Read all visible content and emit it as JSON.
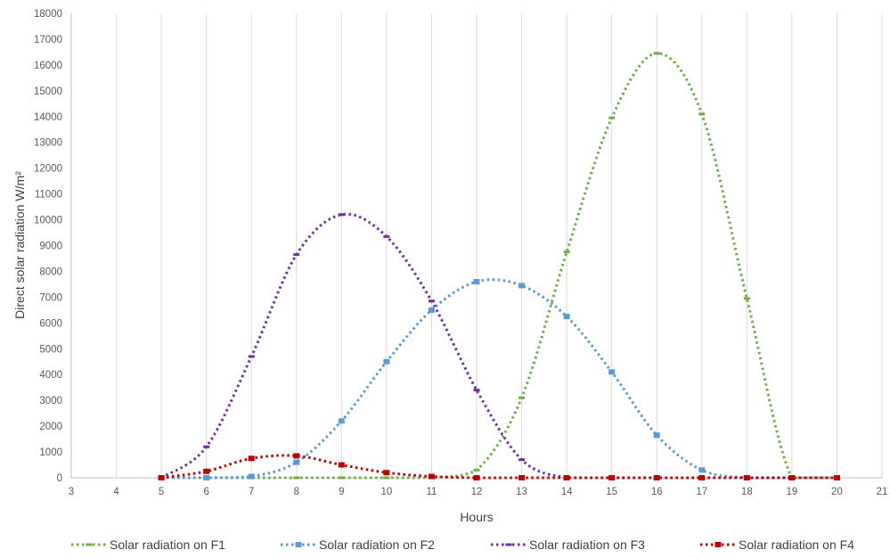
{
  "chart_data": {
    "type": "line",
    "title": "",
    "xlabel": "Hours",
    "ylabel": "Direct solar radiation W/m²",
    "xlim": [
      3,
      21
    ],
    "ylim": [
      0,
      18000
    ],
    "x_ticks": [
      "3",
      "4",
      "5",
      "6",
      "7",
      "8",
      "9",
      "10",
      "11",
      "12",
      "13",
      "14",
      "15",
      "16",
      "17",
      "18",
      "19",
      "20",
      "21"
    ],
    "y_ticks": [
      "0",
      "1000",
      "2000",
      "3000",
      "4000",
      "5000",
      "6000",
      "7000",
      "8000",
      "9000",
      "10000",
      "11000",
      "12000",
      "13000",
      "14000",
      "15000",
      "16000",
      "17000",
      "18000"
    ],
    "grid": "vertical",
    "legend_position": "bottom",
    "x": [
      5,
      6,
      7,
      8,
      9,
      10,
      11,
      12,
      13,
      14,
      15,
      16,
      17,
      18,
      19,
      20
    ],
    "series": [
      {
        "name": "Solar radiation on F1",
        "color": "#70AD47",
        "marker": "dash",
        "values": [
          0,
          0,
          0,
          0,
          0,
          0,
          0,
          300,
          3100,
          8750,
          13950,
          16450,
          14100,
          6950,
          0,
          0
        ]
      },
      {
        "name": "Solar radiation on F2",
        "color": "#5B9BD5",
        "marker": "square",
        "values": [
          0,
          0,
          50,
          600,
          2200,
          4500,
          6500,
          7600,
          7450,
          6250,
          4100,
          1650,
          300,
          0,
          0,
          0
        ]
      },
      {
        "name": "Solar radiation on F3",
        "color": "#7030A0",
        "marker": "dash",
        "values": [
          0,
          1200,
          4700,
          8650,
          10200,
          9350,
          6850,
          3400,
          700,
          0,
          0,
          0,
          0,
          0,
          0,
          0
        ]
      },
      {
        "name": "Solar radiation on F4",
        "color": "#C00000",
        "marker": "square",
        "values": [
          0,
          250,
          750,
          850,
          500,
          200,
          50,
          0,
          0,
          0,
          0,
          0,
          0,
          0,
          0,
          0
        ]
      }
    ]
  }
}
